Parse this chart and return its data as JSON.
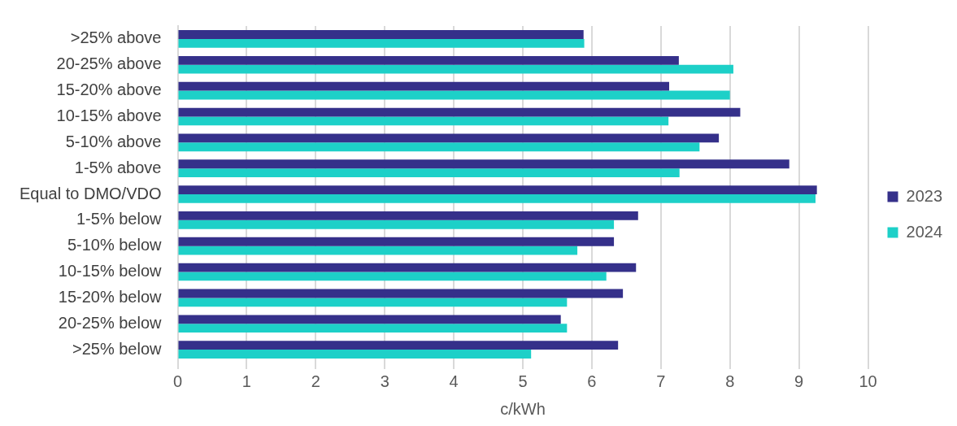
{
  "chart_data": {
    "type": "bar",
    "orientation": "horizontal",
    "xlabel": "c/kWh",
    "categories": [
      ">25% above",
      "20-25% above",
      "15-20% above",
      "10-15% above",
      "5-10% above",
      "1-5% above",
      "Equal to DMO/VDO",
      "1-5% below",
      "5-10% below",
      "10-15% below",
      "15-20% below",
      "20-25% below",
      ">25% below"
    ],
    "series": [
      {
        "name": "2023",
        "color": "#35308a",
        "values": [
          5.88,
          7.26,
          7.12,
          8.15,
          7.84,
          8.86,
          9.26,
          6.67,
          6.32,
          6.64,
          6.45,
          5.55,
          6.38
        ]
      },
      {
        "name": "2024",
        "color": "#1dd0c8",
        "values": [
          5.89,
          8.05,
          8.0,
          7.11,
          7.56,
          7.27,
          9.24,
          6.32,
          5.79,
          6.21,
          5.64,
          5.64,
          5.12
        ]
      }
    ],
    "xlim": [
      0,
      10
    ],
    "xticks": [
      0,
      1,
      2,
      3,
      4,
      5,
      6,
      7,
      8,
      9,
      10
    ],
    "grid": "x",
    "legend": "right"
  }
}
